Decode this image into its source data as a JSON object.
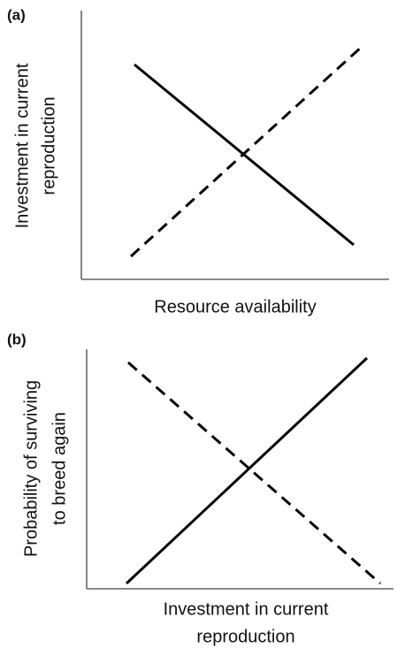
{
  "panels": [
    {
      "tag": "(a)",
      "y_label": [
        "Investment in current",
        "reproduction"
      ],
      "x_label": [
        "Resource availability"
      ]
    },
    {
      "tag": "(b)",
      "y_label": [
        "Probability of surviving",
        "to breed again"
      ],
      "x_label": [
        "Investment in current",
        "reproduction"
      ]
    }
  ]
}
